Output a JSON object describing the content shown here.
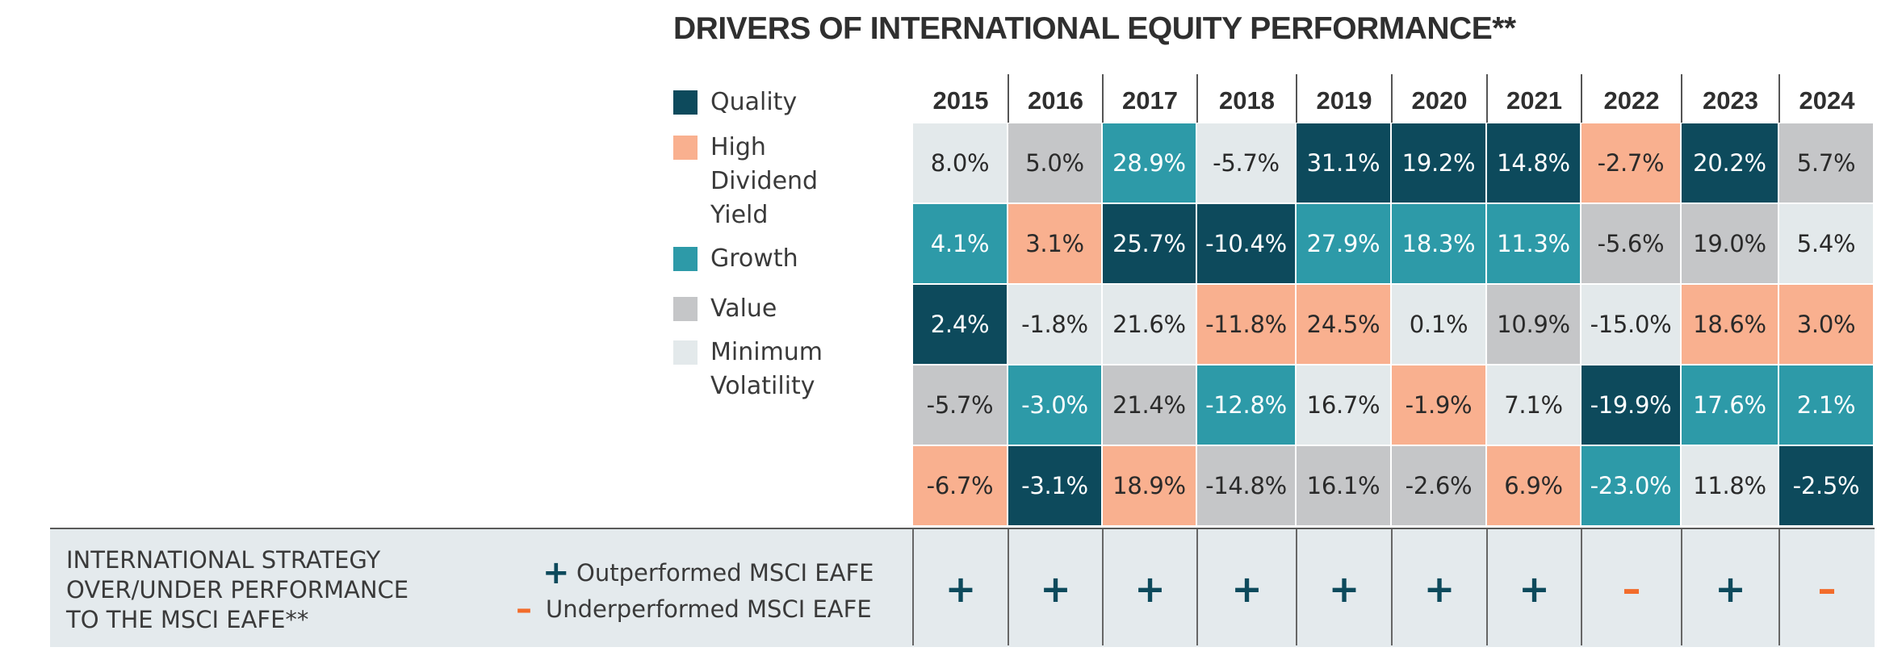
{
  "title": "DRIVERS OF INTERNATIONAL EQUITY PERFORMANCE**",
  "colors": {
    "Quality": "#0d4a5c",
    "High Dividend Yield": "#f9b08f",
    "Growth": "#2d9aa8",
    "Value": "#c5c6c8",
    "Minimum Volatility": "#e3e9eb",
    "plus": "#0d4a5c",
    "minus": "#f26c2b"
  },
  "legend": [
    {
      "label": "Quality",
      "factor": "Quality"
    },
    {
      "label": "High Dividend Yield",
      "factor": "High Dividend Yield"
    },
    {
      "label": "Growth",
      "factor": "Growth"
    },
    {
      "label": "Value",
      "factor": "Value"
    },
    {
      "label": "Minimum Volatility",
      "factor": "Minimum Volatility"
    }
  ],
  "chart_data": {
    "type": "table",
    "title": "DRIVERS OF INTERNATIONAL EQUITY PERFORMANCE**",
    "years": [
      "2015",
      "2016",
      "2017",
      "2018",
      "2019",
      "2020",
      "2021",
      "2022",
      "2023",
      "2024"
    ],
    "columns": [
      [
        {
          "factor": "Minimum Volatility",
          "value": "8.0%"
        },
        {
          "factor": "Growth",
          "value": "4.1%"
        },
        {
          "factor": "Quality",
          "value": "2.4%"
        },
        {
          "factor": "Value",
          "value": "-5.7%"
        },
        {
          "factor": "High Dividend Yield",
          "value": "-6.7%"
        }
      ],
      [
        {
          "factor": "Value",
          "value": "5.0%"
        },
        {
          "factor": "High Dividend Yield",
          "value": "3.1%"
        },
        {
          "factor": "Minimum Volatility",
          "value": "-1.8%"
        },
        {
          "factor": "Growth",
          "value": "-3.0%"
        },
        {
          "factor": "Quality",
          "value": "-3.1%"
        }
      ],
      [
        {
          "factor": "Growth",
          "value": "28.9%"
        },
        {
          "factor": "Quality",
          "value": "25.7%"
        },
        {
          "factor": "Minimum Volatility",
          "value": "21.6%"
        },
        {
          "factor": "Value",
          "value": "21.4%"
        },
        {
          "factor": "High Dividend Yield",
          "value": "18.9%"
        }
      ],
      [
        {
          "factor": "Minimum Volatility",
          "value": "-5.7%"
        },
        {
          "factor": "Quality",
          "value": "-10.4%"
        },
        {
          "factor": "High Dividend Yield",
          "value": "-11.8%"
        },
        {
          "factor": "Growth",
          "value": "-12.8%"
        },
        {
          "factor": "Value",
          "value": "-14.8%"
        }
      ],
      [
        {
          "factor": "Quality",
          "value": "31.1%"
        },
        {
          "factor": "Growth",
          "value": "27.9%"
        },
        {
          "factor": "High Dividend Yield",
          "value": "24.5%"
        },
        {
          "factor": "Minimum Volatility",
          "value": "16.7%"
        },
        {
          "factor": "Value",
          "value": "16.1%"
        }
      ],
      [
        {
          "factor": "Quality",
          "value": "19.2%"
        },
        {
          "factor": "Growth",
          "value": "18.3%"
        },
        {
          "factor": "Minimum Volatility",
          "value": "0.1%"
        },
        {
          "factor": "High Dividend Yield",
          "value": "-1.9%"
        },
        {
          "factor": "Value",
          "value": "-2.6%"
        }
      ],
      [
        {
          "factor": "Quality",
          "value": "14.8%"
        },
        {
          "factor": "Growth",
          "value": "11.3%"
        },
        {
          "factor": "Value",
          "value": "10.9%"
        },
        {
          "factor": "Minimum Volatility",
          "value": "7.1%"
        },
        {
          "factor": "High Dividend Yield",
          "value": "6.9%"
        }
      ],
      [
        {
          "factor": "High Dividend Yield",
          "value": "-2.7%"
        },
        {
          "factor": "Value",
          "value": "-5.6%"
        },
        {
          "factor": "Minimum Volatility",
          "value": "-15.0%"
        },
        {
          "factor": "Quality",
          "value": "-19.9%"
        },
        {
          "factor": "Growth",
          "value": "-23.0%"
        }
      ],
      [
        {
          "factor": "Quality",
          "value": "20.2%"
        },
        {
          "factor": "Value",
          "value": "19.0%"
        },
        {
          "factor": "High Dividend Yield",
          "value": "18.6%"
        },
        {
          "factor": "Growth",
          "value": "17.6%"
        },
        {
          "factor": "Minimum Volatility",
          "value": "11.8%"
        }
      ],
      [
        {
          "factor": "Value",
          "value": "5.7%"
        },
        {
          "factor": "Minimum Volatility",
          "value": "5.4%"
        },
        {
          "factor": "High Dividend Yield",
          "value": "3.0%"
        },
        {
          "factor": "Growth",
          "value": "2.1%"
        },
        {
          "factor": "Quality",
          "value": "-2.5%"
        }
      ]
    ]
  },
  "performance": {
    "label": "INTERNATIONAL STRATEGY OVER/UNDER PERFORMANCE TO THE MSCI EAFE**",
    "label_lines": [
      "INTERNATIONAL STRATEGY",
      "OVER/UNDER PERFORMANCE",
      "TO THE MSCI EAFE**"
    ],
    "key_outperformed": "Outperformed MSCI EAFE",
    "key_underperformed": "Underperformed MSCI EAFE",
    "glyph_plus": "+",
    "glyph_minus": "–",
    "marks": [
      "+",
      "+",
      "+",
      "+",
      "+",
      "+",
      "+",
      "–",
      "+",
      "–"
    ]
  }
}
